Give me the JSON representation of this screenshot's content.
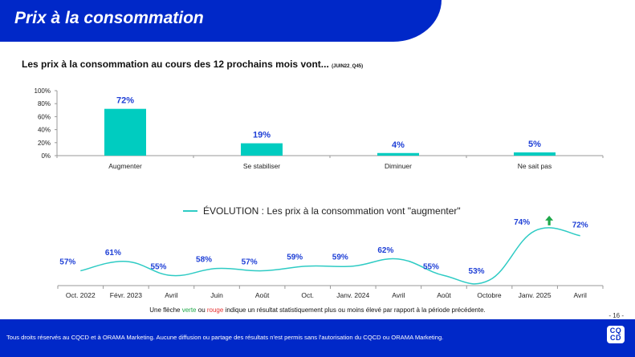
{
  "header": {
    "title": "Prix à la consommation"
  },
  "question": {
    "title": "Les prix à la consommation au cours des 12 prochains mois vont...",
    "code": "(JUIN22_Q45)"
  },
  "legend": {
    "label": "ÉVOLUTION : Les prix à la consommation vont \"augmenter\""
  },
  "footnote": {
    "part1": "Une flèche ",
    "green_word": "verte",
    "part2": " ou ",
    "red_word": "rouge",
    "part3": " indique un résultat statistiquement plus ou moins élevé par rapport à la période précédente."
  },
  "page_number": "- 16 -",
  "footer": {
    "text": "Tous droits réservés au CQCD et à ORAMA Marketing. Aucune diffusion ou partage des résultats n'est permis sans l'autorisation du CQCD ou ORAMA Marketing.",
    "logo_line1": "CQ",
    "logo_line2": "CD"
  },
  "colors": {
    "brand_blue": "#0028C8",
    "bar_teal": "#00CCC0",
    "line_teal": "#2ECBC4",
    "label_blue": "#1E3FD6",
    "up_arrow_green": "#1FA84A"
  },
  "chart_data": [
    {
      "type": "bar",
      "title": "Les prix à la consommation au cours des 12 prochains mois vont...",
      "categories": [
        "Augmenter",
        "Se stabiliser",
        "Diminuer",
        "Ne sait pas"
      ],
      "values": [
        72,
        19,
        4,
        5
      ],
      "value_labels": [
        "72%",
        "19%",
        "4%",
        "5%"
      ],
      "yticks": [
        "0%",
        "20%",
        "40%",
        "60%",
        "80%",
        "100%"
      ],
      "ylim": [
        0,
        100
      ],
      "xlabel": "",
      "ylabel": "",
      "grid": false
    },
    {
      "type": "line",
      "title": "ÉVOLUTION : Les prix à la consommation vont \"augmenter\"",
      "legend": "top-center",
      "categories": [
        "Oct. 2022",
        "Févr. 2023",
        "Avril",
        "Juin",
        "Août",
        "Oct.",
        "Janv. 2024",
        "Avril",
        "Août",
        "Octobre",
        "Janv. 2025",
        "Avril"
      ],
      "values": [
        57,
        61,
        55,
        58,
        57,
        59,
        59,
        62,
        55,
        53,
        74,
        72
      ],
      "value_labels": [
        "57%",
        "61%",
        "55%",
        "58%",
        "57%",
        "59%",
        "59%",
        "62%",
        "55%",
        "53%",
        "74%",
        "72%"
      ],
      "annotations": [
        {
          "index": 10,
          "type": "arrow-up",
          "color": "green"
        }
      ],
      "ylim": [
        50,
        76
      ],
      "grid": false
    }
  ]
}
